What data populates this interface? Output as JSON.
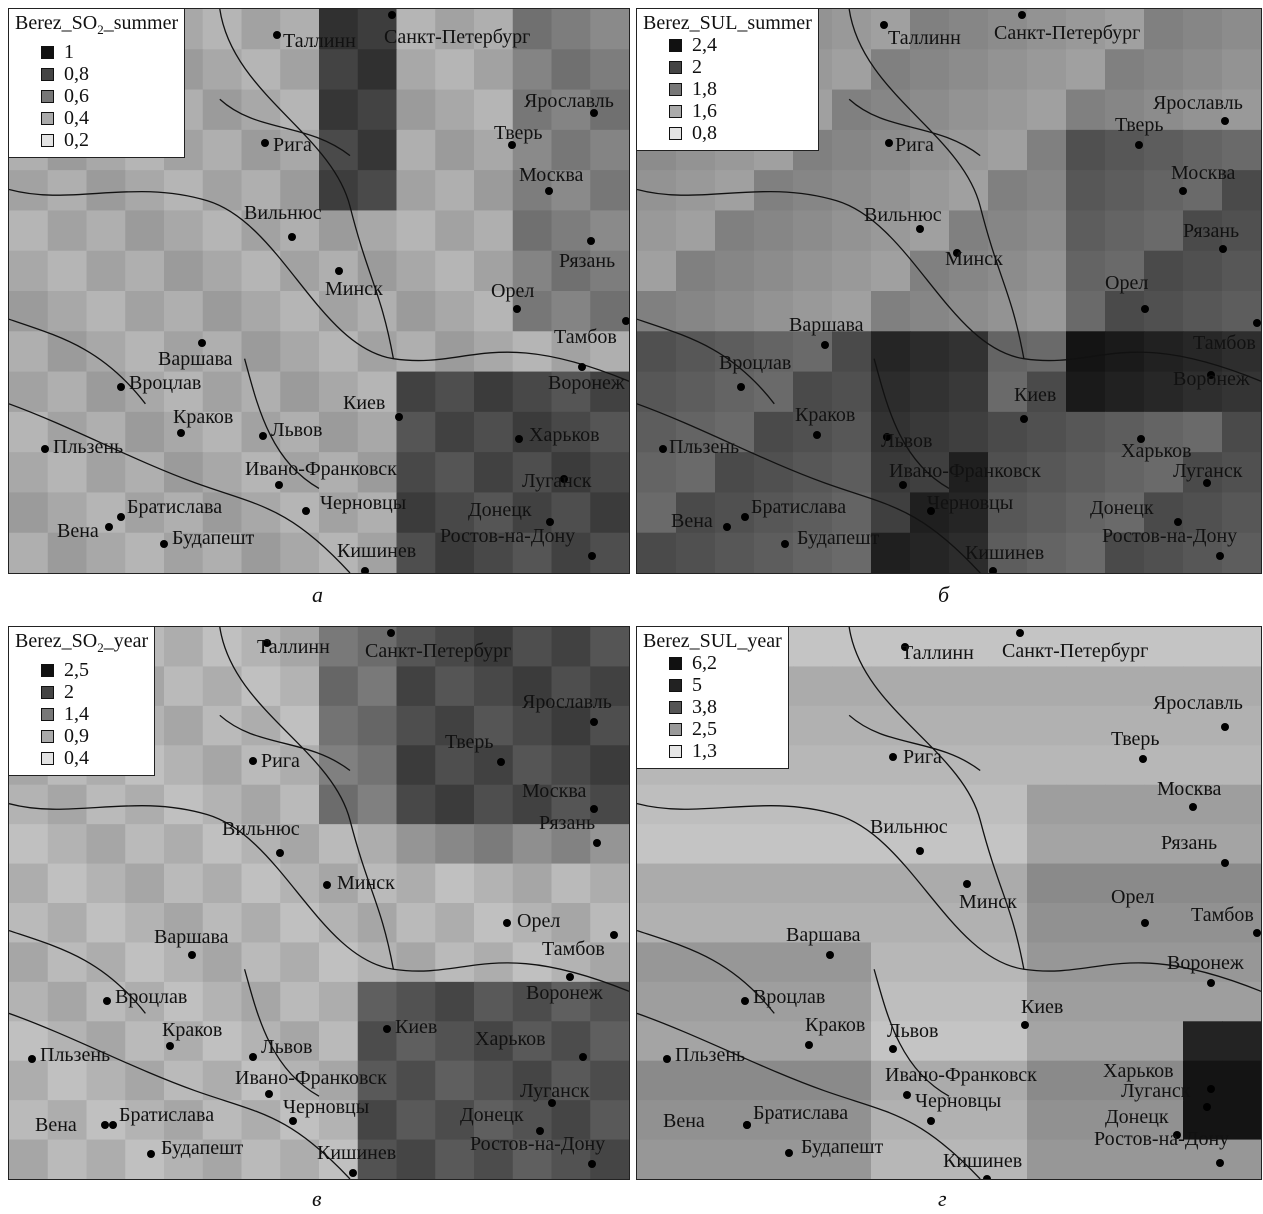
{
  "panels": [
    {
      "id": "a",
      "label": "а",
      "legend": {
        "title_pre": "Berez_SO",
        "title_sub": "2",
        "title_post": "_summer",
        "items": [
          {
            "value": "1",
            "color": "#111111"
          },
          {
            "value": "0,8",
            "color": "#444444"
          },
          {
            "value": "0,6",
            "color": "#777777"
          },
          {
            "value": "0,4",
            "color": "#aaaaaa"
          },
          {
            "value": "0,2",
            "color": "#e3e3e3"
          }
        ]
      },
      "cities": [
        {
          "name": "Таллинн"
        },
        {
          "name": "Санкт-Петербург"
        },
        {
          "name": "Ярославль"
        },
        {
          "name": "Рига"
        },
        {
          "name": "Тверь"
        },
        {
          "name": "Москва"
        },
        {
          "name": "Вильнюс"
        },
        {
          "name": "Рязань"
        },
        {
          "name": "Минск"
        },
        {
          "name": "Орел"
        },
        {
          "name": "Тамбов"
        },
        {
          "name": "Варшава"
        },
        {
          "name": "Воронеж"
        },
        {
          "name": "Вроцлав"
        },
        {
          "name": "Киев"
        },
        {
          "name": "Краков"
        },
        {
          "name": "Львов"
        },
        {
          "name": "Харьков"
        },
        {
          "name": "Пльзень"
        },
        {
          "name": "Ивано-Франковск"
        },
        {
          "name": "Луганск"
        },
        {
          "name": "Братислава"
        },
        {
          "name": "Черновцы"
        },
        {
          "name": "Донецк"
        },
        {
          "name": "Вена"
        },
        {
          "name": "Будапешт"
        },
        {
          "name": "Ростов-на-Дону"
        },
        {
          "name": "Кишинев"
        }
      ]
    },
    {
      "id": "b",
      "label": "б",
      "legend": {
        "title_pre": "Berez_SUL_summer",
        "title_sub": "",
        "title_post": "",
        "items": [
          {
            "value": "2,4",
            "color": "#111111"
          },
          {
            "value": "2",
            "color": "#444444"
          },
          {
            "value": "1,8",
            "color": "#777777"
          },
          {
            "value": "1,6",
            "color": "#aaaaaa"
          },
          {
            "value": "0,8",
            "color": "#e3e3e3"
          }
        ]
      },
      "cities": [
        {
          "name": "Таллинн"
        },
        {
          "name": "Санкт-Петербург"
        },
        {
          "name": "Ярославль"
        },
        {
          "name": "Рига"
        },
        {
          "name": "Тверь"
        },
        {
          "name": "Москва"
        },
        {
          "name": "Вильнюс"
        },
        {
          "name": "Рязань"
        },
        {
          "name": "Минск"
        },
        {
          "name": "Орел"
        },
        {
          "name": "Тамбов"
        },
        {
          "name": "Варшава"
        },
        {
          "name": "Воронеж"
        },
        {
          "name": "Вроцлав"
        },
        {
          "name": "Киев"
        },
        {
          "name": "Краков"
        },
        {
          "name": "Львов"
        },
        {
          "name": "Харьков"
        },
        {
          "name": "Пльзень"
        },
        {
          "name": "Ивано-Франковск"
        },
        {
          "name": "Луганск"
        },
        {
          "name": "Братислава"
        },
        {
          "name": "Черновцы"
        },
        {
          "name": "Донецк"
        },
        {
          "name": "Вена"
        },
        {
          "name": "Будапешт"
        },
        {
          "name": "Ростов-на-Дону"
        },
        {
          "name": "Кишинев"
        }
      ]
    },
    {
      "id": "c",
      "label": "в",
      "legend": {
        "title_pre": "Berez_SO",
        "title_sub": "2",
        "title_post": "_year",
        "items": [
          {
            "value": "2,5",
            "color": "#111111"
          },
          {
            "value": "2",
            "color": "#444444"
          },
          {
            "value": "1,4",
            "color": "#777777"
          },
          {
            "value": "0,9",
            "color": "#aaaaaa"
          },
          {
            "value": "0,4",
            "color": "#e3e3e3"
          }
        ]
      },
      "cities": [
        {
          "name": "Таллинн"
        },
        {
          "name": "Санкт-Петербург"
        },
        {
          "name": "Ярославль"
        },
        {
          "name": "Рига"
        },
        {
          "name": "Тверь"
        },
        {
          "name": "Москва"
        },
        {
          "name": "Вильнюс"
        },
        {
          "name": "Рязань"
        },
        {
          "name": "Минск"
        },
        {
          "name": "Орел"
        },
        {
          "name": "Тамбов"
        },
        {
          "name": "Варшава"
        },
        {
          "name": "Воронеж"
        },
        {
          "name": "Вроцлав"
        },
        {
          "name": "Киев"
        },
        {
          "name": "Краков"
        },
        {
          "name": "Львов"
        },
        {
          "name": "Харьков"
        },
        {
          "name": "Пльзень"
        },
        {
          "name": "Ивано-Франковск"
        },
        {
          "name": "Луганск"
        },
        {
          "name": "Братислава"
        },
        {
          "name": "Черновцы"
        },
        {
          "name": "Донецк"
        },
        {
          "name": "Вена"
        },
        {
          "name": "Будапешт"
        },
        {
          "name": "Ростов-на-Дону"
        },
        {
          "name": "Кишинев"
        }
      ]
    },
    {
      "id": "d",
      "label": "г",
      "legend": {
        "title_pre": "Berez_SUL_year",
        "title_sub": "",
        "title_post": "",
        "items": [
          {
            "value": "6,2",
            "color": "#111111"
          },
          {
            "value": "5",
            "color": "#222222"
          },
          {
            "value": "3,8",
            "color": "#555555"
          },
          {
            "value": "2,5",
            "color": "#999999"
          },
          {
            "value": "1,3",
            "color": "#e6e6e6"
          }
        ]
      },
      "cities": [
        {
          "name": "Таллинн"
        },
        {
          "name": "Санкт-Петербург"
        },
        {
          "name": "Ярославль"
        },
        {
          "name": "Рига"
        },
        {
          "name": "Тверь"
        },
        {
          "name": "Москва"
        },
        {
          "name": "Вильнюс"
        },
        {
          "name": "Рязань"
        },
        {
          "name": "Минск"
        },
        {
          "name": "Орел"
        },
        {
          "name": "Тамбов"
        },
        {
          "name": "Варшава"
        },
        {
          "name": "Воронеж"
        },
        {
          "name": "Вроцлав"
        },
        {
          "name": "Киев"
        },
        {
          "name": "Краков"
        },
        {
          "name": "Львов"
        },
        {
          "name": "Харьков"
        },
        {
          "name": "Пльзень"
        },
        {
          "name": "Ивано-Франковск"
        },
        {
          "name": "Луганск"
        },
        {
          "name": "Братислава"
        },
        {
          "name": "Черновцы"
        },
        {
          "name": "Донецк"
        },
        {
          "name": "Вена"
        },
        {
          "name": "Будапешт"
        },
        {
          "name": "Ростов-на-Дону"
        },
        {
          "name": "Кишинев"
        }
      ]
    }
  ]
}
